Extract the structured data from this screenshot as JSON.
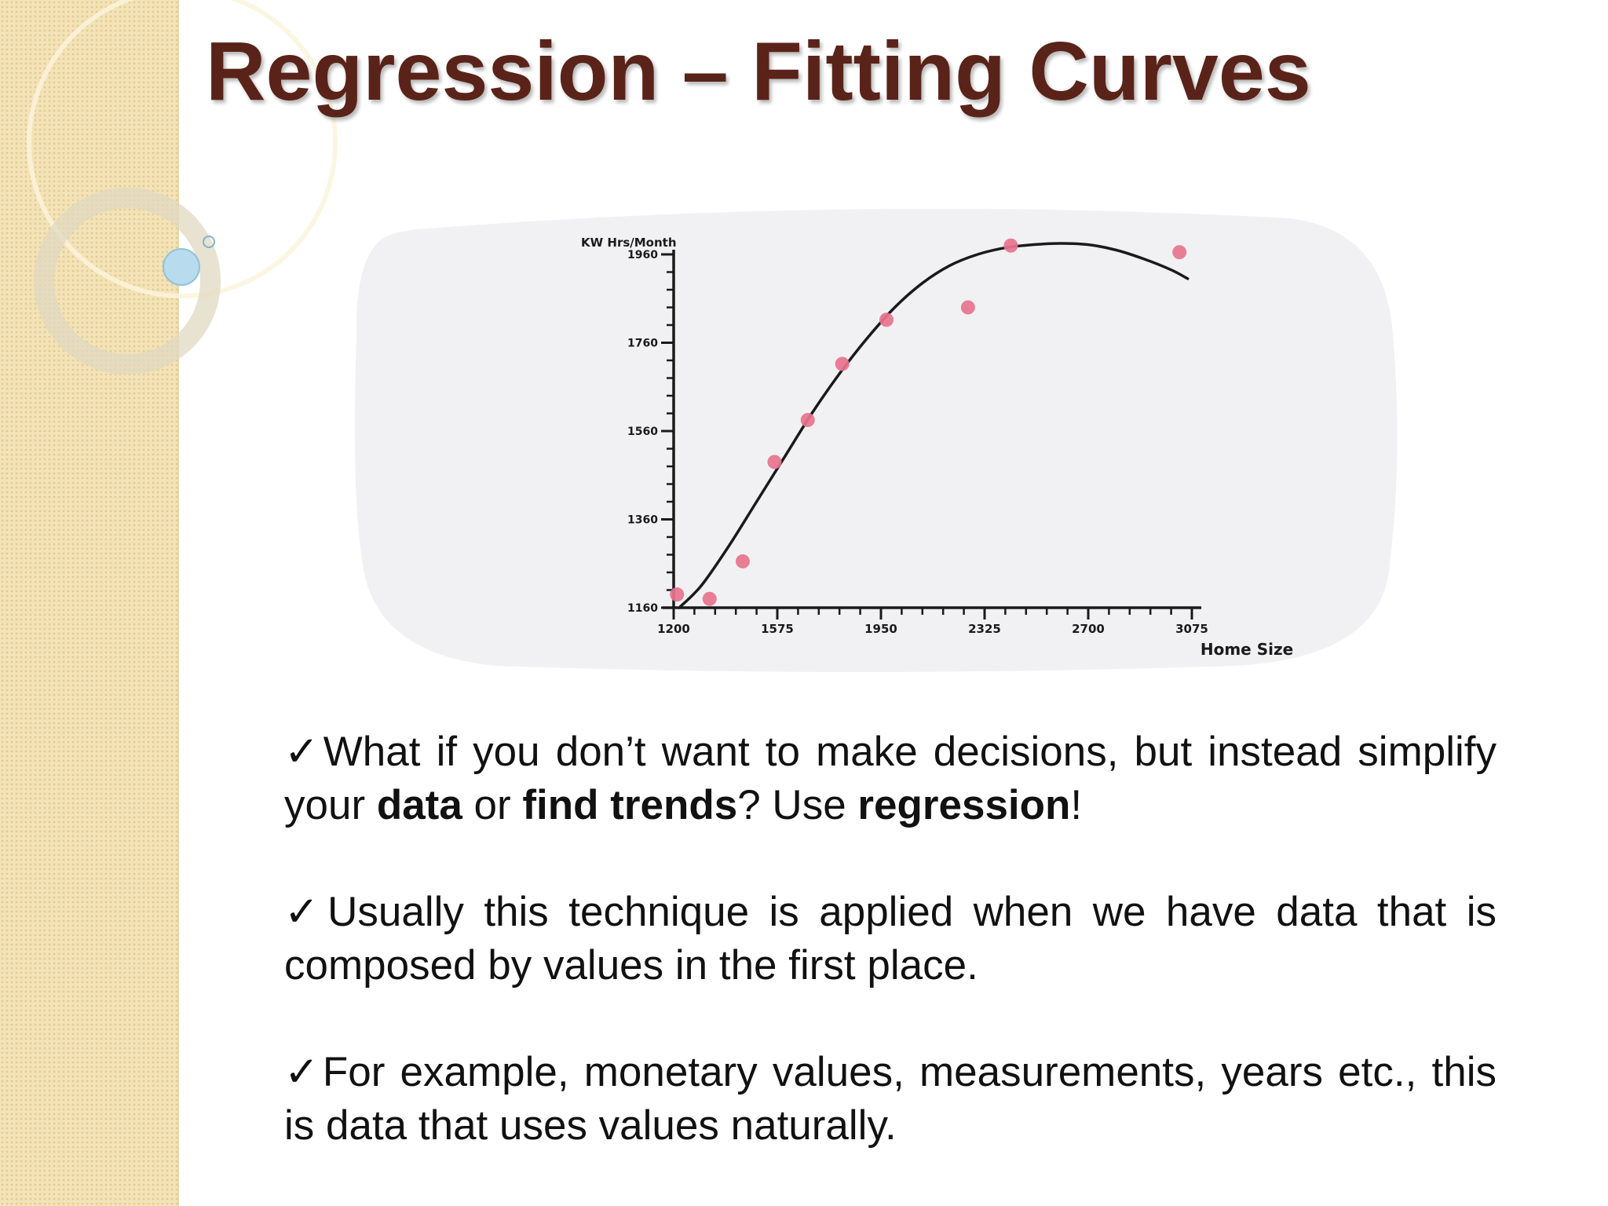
{
  "slide": {
    "title": "Regression – Fitting Curves",
    "bullets": [
      {
        "segments": [
          {
            "text": "What if you don’t want to make decisions, but instead simplify your ",
            "bold": false
          },
          {
            "text": "data",
            "bold": true
          },
          {
            "text": " or ",
            "bold": false
          },
          {
            "text": "find trends",
            "bold": true
          },
          {
            "text": "? Use ",
            "bold": false
          },
          {
            "text": "regression",
            "bold": true
          },
          {
            "text": "!",
            "bold": false
          }
        ]
      },
      {
        "segments": [
          {
            "text": "Usually this technique is applied when we have data that is composed by values in the first place.",
            "bold": false
          }
        ]
      },
      {
        "segments": [
          {
            "text": "For example, monetary values, measurements, years etc., this is data that uses values naturally.",
            "bold": false
          }
        ]
      }
    ],
    "check_symbol": "✓"
  },
  "colors": {
    "title": "#5a2319",
    "sidebar": "#f3e3b6",
    "point": "#e8738e",
    "curve": "#1a1a1a",
    "chart_background": "#f1f1f3"
  },
  "chart_data": {
    "type": "scatter",
    "title": "",
    "xlabel": "Home Size",
    "ylabel": "KW Hrs/Month",
    "xlim": [
      1200,
      3075
    ],
    "ylim": [
      1160,
      1960
    ],
    "x_ticks": [
      1200,
      1575,
      1950,
      2325,
      2700,
      3075
    ],
    "x_tick_labels": [
      "1200",
      "1575",
      "1950",
      "2325",
      "2700",
      "3075"
    ],
    "y_ticks": [
      1160,
      1360,
      1560,
      1760,
      1960
    ],
    "y_tick_labels": [
      "1160",
      "1360",
      "1560",
      "1760",
      "1960"
    ],
    "series": [
      {
        "points": [
          {
            "x": 1212,
            "y": 1190
          },
          {
            "x": 1330,
            "y": 1180
          },
          {
            "x": 1450,
            "y": 1265
          },
          {
            "x": 1565,
            "y": 1490
          },
          {
            "x": 1685,
            "y": 1585
          },
          {
            "x": 1810,
            "y": 1712
          },
          {
            "x": 1970,
            "y": 1812
          },
          {
            "x": 2265,
            "y": 1840
          },
          {
            "x": 2420,
            "y": 1980
          },
          {
            "x": 3030,
            "y": 1965
          }
        ]
      }
    ],
    "trend_curve": {
      "x": [
        1220,
        1300,
        1400,
        1500,
        1600,
        1700,
        1800,
        1900,
        2000,
        2100,
        2200,
        2300,
        2400,
        2500,
        2600,
        2700,
        2800,
        2900,
        3000,
        3060
      ],
      "y": [
        1160,
        1210,
        1300,
        1400,
        1500,
        1600,
        1690,
        1770,
        1840,
        1895,
        1935,
        1960,
        1975,
        1982,
        1985,
        1982,
        1970,
        1950,
        1925,
        1905
      ]
    },
    "grid": false,
    "legend": "none"
  }
}
